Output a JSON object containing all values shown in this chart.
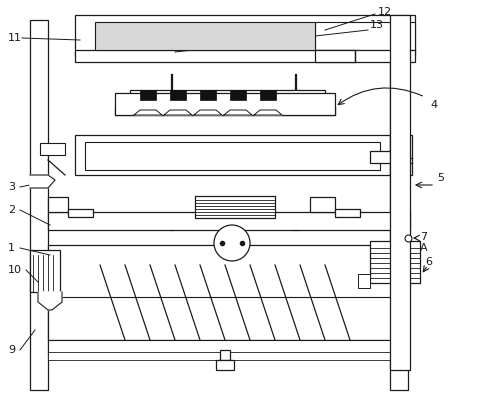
{
  "background_color": "#ffffff",
  "line_color": "#1a1a1a",
  "fig_w": 4.81,
  "fig_h": 3.99,
  "dpi": 100
}
